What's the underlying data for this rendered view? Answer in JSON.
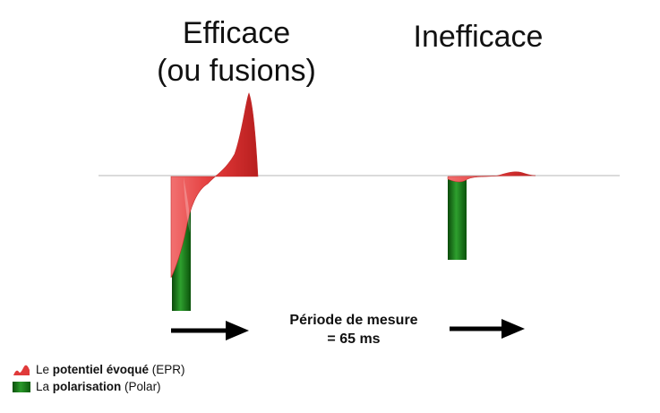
{
  "titles": {
    "efficace_line1": "Efficace",
    "efficace_line2": "(ou fusions)",
    "inefficace": "Inefficace"
  },
  "period": {
    "line1": "Période de mesure",
    "line2": "= 65 ms"
  },
  "legend": {
    "epr_prefix": "Le ",
    "epr_bold": "potentiel évoqué",
    "epr_suffix": " (EPR)",
    "polar_prefix": "La ",
    "polar_bold": "polarisation",
    "polar_suffix": " (Polar)"
  },
  "colors": {
    "epr_red": "#e03a3a",
    "polar_green": "#1f7a1f",
    "baseline": "#cfcfcf",
    "arrow": "#000000"
  }
}
